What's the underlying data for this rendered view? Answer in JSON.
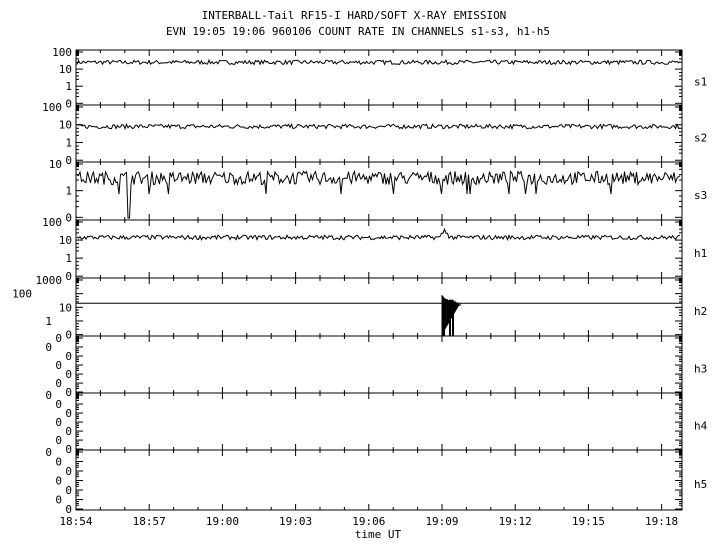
{
  "chart_data": {
    "type": "line",
    "title": "INTERBALL-Tail RF15-I HARD/SOFT X-RAY EMISSION",
    "subtitle": "EVN 19:05 19:06 960106  COUNT RATE IN CHANNELS s1-s3, h1-h5",
    "xlabel": "time UT",
    "x_ticks": [
      "18:54",
      "18:57",
      "19:00",
      "19:03",
      "19:06",
      "19:09",
      "19:12",
      "19:15",
      "19:18"
    ],
    "xlim": [
      "18:54",
      "19:18:50"
    ],
    "y_scale": "log",
    "grid": false,
    "line_color": "#000000",
    "panels": [
      {
        "name": "s1",
        "y_ticks": [
          "100",
          "10",
          "1",
          "0"
        ],
        "typical_level": 25,
        "features": []
      },
      {
        "name": "s2",
        "y_ticks": [
          "100",
          "10",
          "1",
          "0"
        ],
        "typical_level": 8,
        "features": []
      },
      {
        "name": "s3",
        "y_ticks": [
          "10",
          "1",
          "0"
        ],
        "typical_level": 3,
        "features": [
          {
            "time": "18:56:10",
            "value": 0,
            "type": "dropout"
          }
        ]
      },
      {
        "name": "h1",
        "y_ticks": [
          "100",
          "10",
          "1",
          "0"
        ],
        "typical_level": 14,
        "features": [
          {
            "time": "19:09:05",
            "value": 40,
            "type": "spike"
          }
        ]
      },
      {
        "name": "h2",
        "y_ticks": [
          "1000",
          "100",
          "10",
          "1",
          "0"
        ],
        "typical_level": null,
        "reference_level": 20,
        "features": [
          {
            "time": "19:09:00",
            "time_end": "19:09:45",
            "value": 60,
            "type": "burst"
          }
        ]
      },
      {
        "name": "h3",
        "y_ticks": [
          "0",
          "0",
          "0",
          "0",
          "0",
          "0",
          "0"
        ],
        "typical_level": null,
        "features": []
      },
      {
        "name": "h4",
        "y_ticks": [
          "0",
          "0",
          "0",
          "0",
          "0",
          "0",
          "0"
        ],
        "typical_level": null,
        "features": []
      },
      {
        "name": "h5",
        "y_ticks": [
          "0",
          "0",
          "0",
          "0",
          "0",
          "0",
          "0"
        ],
        "typical_level": null,
        "features": []
      }
    ]
  }
}
